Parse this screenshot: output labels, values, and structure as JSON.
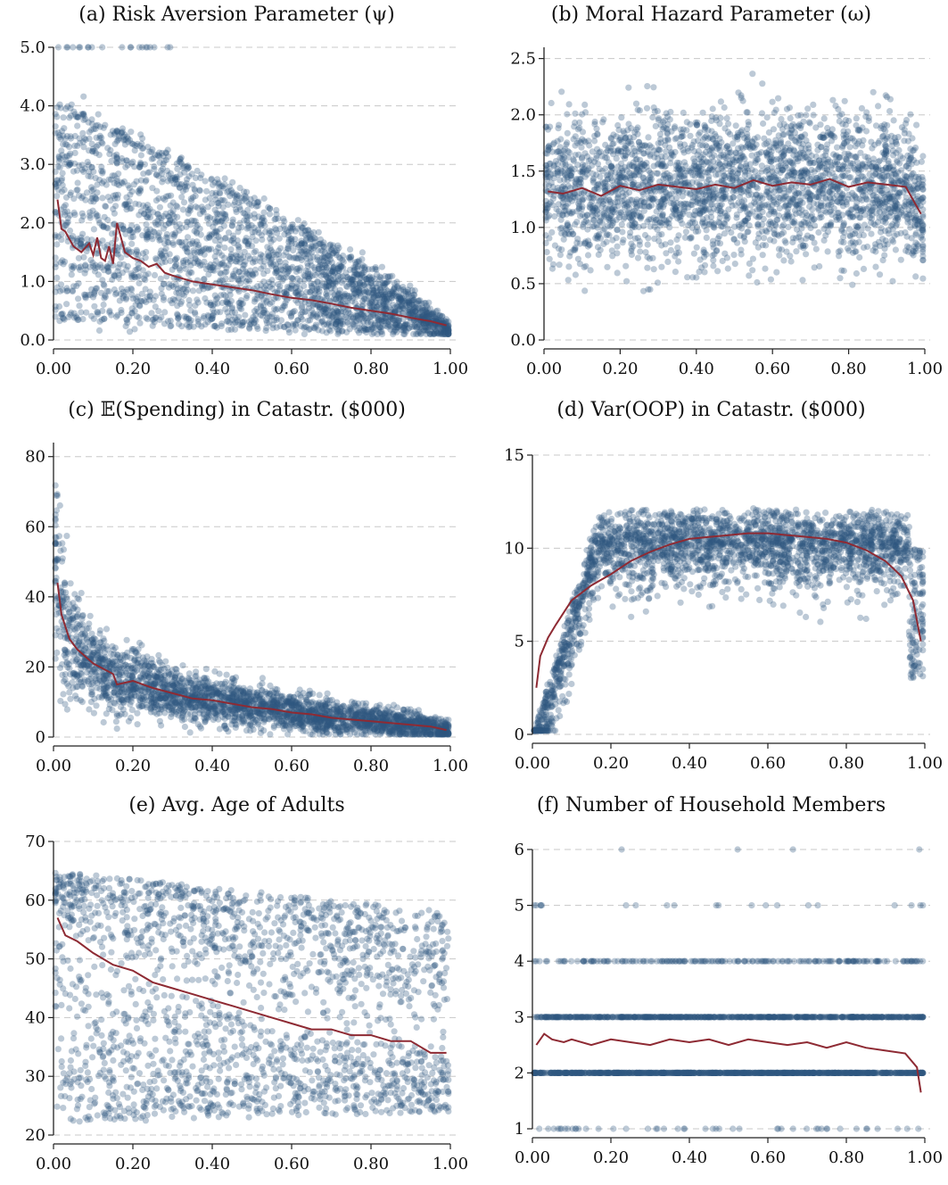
{
  "colors": {
    "scatter": "#2f587f",
    "line": "#8e2a33",
    "grid": "#c8c8c8",
    "axis": "#222222"
  },
  "chart_data": [
    {
      "id": "a",
      "type": "scatter",
      "title": "(a) Risk Aversion Parameter (ψ)",
      "xlim": [
        0,
        1
      ],
      "ylim": [
        0,
        5
      ],
      "xticks": [
        0,
        0.2,
        0.4,
        0.6,
        0.8,
        1.0
      ],
      "xtick_labels": [
        "0.00",
        "0.20",
        "0.40",
        "0.60",
        "0.80",
        "1.00"
      ],
      "yticks": [
        0,
        1,
        2,
        3,
        4,
        5
      ],
      "ytick_labels": [
        "0.0",
        "1.0",
        "2.0",
        "3.0",
        "4.0",
        "5.0"
      ],
      "grid": true,
      "line": {
        "x": [
          0.01,
          0.02,
          0.03,
          0.05,
          0.07,
          0.09,
          0.1,
          0.11,
          0.12,
          0.13,
          0.14,
          0.15,
          0.16,
          0.18,
          0.2,
          0.22,
          0.24,
          0.26,
          0.28,
          0.3,
          0.35,
          0.4,
          0.45,
          0.5,
          0.55,
          0.6,
          0.65,
          0.7,
          0.75,
          0.8,
          0.85,
          0.9,
          0.95,
          0.99
        ],
        "y": [
          2.4,
          1.9,
          1.85,
          1.6,
          1.5,
          1.65,
          1.45,
          1.75,
          1.4,
          1.35,
          1.6,
          1.3,
          2.0,
          1.5,
          1.4,
          1.35,
          1.25,
          1.3,
          1.15,
          1.1,
          1.0,
          0.95,
          0.9,
          0.85,
          0.78,
          0.72,
          0.68,
          0.62,
          0.55,
          0.5,
          0.45,
          0.38,
          0.32,
          0.25
        ]
      },
      "scatter": {
        "n": 2800,
        "x_range": [
          0.0,
          1.0
        ]
      }
    },
    {
      "id": "b",
      "type": "scatter",
      "title": "(b) Moral Hazard Parameter (ω)",
      "xlim": [
        0,
        1
      ],
      "ylim": [
        0,
        2.6
      ],
      "xticks": [
        0,
        0.2,
        0.4,
        0.6,
        0.8,
        1.0
      ],
      "xtick_labels": [
        "0.00",
        "0.20",
        "0.40",
        "0.60",
        "0.80",
        "1.00"
      ],
      "yticks": [
        0,
        0.5,
        1,
        1.5,
        2,
        2.5
      ],
      "ytick_labels": [
        "0.0",
        "0.5",
        "1.0",
        "1.5",
        "2.0",
        "2.5"
      ],
      "grid": true,
      "line": {
        "x": [
          0.01,
          0.05,
          0.1,
          0.15,
          0.2,
          0.25,
          0.3,
          0.35,
          0.4,
          0.45,
          0.5,
          0.55,
          0.6,
          0.65,
          0.7,
          0.75,
          0.8,
          0.85,
          0.9,
          0.95,
          0.99
        ],
        "y": [
          1.32,
          1.3,
          1.35,
          1.28,
          1.37,
          1.33,
          1.38,
          1.36,
          1.34,
          1.38,
          1.35,
          1.42,
          1.37,
          1.4,
          1.38,
          1.43,
          1.36,
          1.4,
          1.38,
          1.36,
          1.12
        ]
      },
      "scatter": {
        "n": 2800,
        "x_range": [
          0.0,
          1.0
        ]
      }
    },
    {
      "id": "c",
      "type": "scatter",
      "title": "(c) 𝔼(Spending) in Catastr. ($000)",
      "xlim": [
        0,
        1
      ],
      "ylim": [
        0,
        84
      ],
      "xticks": [
        0,
        0.2,
        0.4,
        0.6,
        0.8,
        1.0
      ],
      "xtick_labels": [
        "0.00",
        "0.20",
        "0.40",
        "0.60",
        "0.80",
        "1.00"
      ],
      "yticks": [
        0,
        20,
        40,
        60,
        80
      ],
      "ytick_labels": [
        "0",
        "20",
        "40",
        "60",
        "80"
      ],
      "grid": true,
      "line": {
        "x": [
          0.01,
          0.02,
          0.04,
          0.06,
          0.1,
          0.15,
          0.16,
          0.2,
          0.25,
          0.3,
          0.35,
          0.4,
          0.45,
          0.5,
          0.55,
          0.6,
          0.65,
          0.7,
          0.75,
          0.8,
          0.85,
          0.9,
          0.95,
          0.99
        ],
        "y": [
          44,
          35,
          28,
          25,
          21,
          18,
          15,
          16,
          14,
          12.5,
          11,
          10.5,
          9.5,
          8.5,
          8,
          7,
          6.5,
          5.5,
          5,
          4.5,
          4,
          3.5,
          3,
          2
        ]
      },
      "scatter": {
        "n": 2800,
        "x_range": [
          0.0,
          1.0
        ]
      }
    },
    {
      "id": "d",
      "type": "scatter",
      "title": "(d) Var(OOP) in Catastr. ($000)",
      "xlim": [
        0,
        1
      ],
      "ylim": [
        0,
        15
      ],
      "xticks": [
        0,
        0.2,
        0.4,
        0.6,
        0.8,
        1.0
      ],
      "xtick_labels": [
        "0.00",
        "0.20",
        "0.40",
        "0.60",
        "0.80",
        "1.00"
      ],
      "yticks": [
        0,
        5,
        10,
        15
      ],
      "ytick_labels": [
        "0",
        "5",
        "10",
        "15"
      ],
      "grid": true,
      "line": {
        "x": [
          0.01,
          0.02,
          0.04,
          0.06,
          0.1,
          0.15,
          0.2,
          0.25,
          0.3,
          0.35,
          0.4,
          0.45,
          0.5,
          0.55,
          0.6,
          0.65,
          0.7,
          0.75,
          0.8,
          0.85,
          0.9,
          0.94,
          0.97,
          0.99
        ],
        "y": [
          2.5,
          4.2,
          5.2,
          5.9,
          7.2,
          8.0,
          8.6,
          9.3,
          9.8,
          10.2,
          10.5,
          10.6,
          10.7,
          10.8,
          10.8,
          10.7,
          10.6,
          10.5,
          10.3,
          9.9,
          9.3,
          8.5,
          7.2,
          5.0
        ]
      },
      "scatter": {
        "n": 2800,
        "x_range": [
          0.0,
          1.0
        ]
      }
    },
    {
      "id": "e",
      "type": "scatter",
      "title": "(e) Avg. Age of Adults",
      "xlim": [
        0,
        1
      ],
      "ylim": [
        20,
        70
      ],
      "xticks": [
        0,
        0.2,
        0.4,
        0.6,
        0.8,
        1.0
      ],
      "xtick_labels": [
        "0.00",
        "0.20",
        "0.40",
        "0.60",
        "0.80",
        "1.00"
      ],
      "yticks": [
        20,
        30,
        40,
        50,
        60,
        70
      ],
      "ytick_labels": [
        "20",
        "30",
        "40",
        "50",
        "60",
        "70"
      ],
      "grid": true,
      "line": {
        "x": [
          0.01,
          0.03,
          0.06,
          0.1,
          0.15,
          0.2,
          0.25,
          0.3,
          0.35,
          0.4,
          0.45,
          0.5,
          0.55,
          0.6,
          0.65,
          0.7,
          0.75,
          0.8,
          0.85,
          0.9,
          0.95,
          0.99
        ],
        "y": [
          57,
          54,
          53,
          51,
          49,
          48,
          46,
          45,
          44,
          43,
          42,
          41,
          40,
          39,
          38,
          38,
          37,
          37,
          36,
          36,
          34,
          34
        ]
      },
      "scatter": {
        "n": 2000,
        "x_range": [
          0.0,
          1.0
        ]
      }
    },
    {
      "id": "f",
      "type": "scatter",
      "title": "(f) Number of Household Members",
      "xlim": [
        0,
        1
      ],
      "ylim": [
        1,
        6
      ],
      "xticks": [
        0,
        0.2,
        0.4,
        0.6,
        0.8,
        1.0
      ],
      "xtick_labels": [
        "0.00",
        "0.20",
        "0.40",
        "0.60",
        "0.80",
        "1.00"
      ],
      "yticks": [
        1,
        2,
        3,
        4,
        5,
        6
      ],
      "ytick_labels": [
        "1",
        "2",
        "3",
        "4",
        "5",
        "6"
      ],
      "grid": true,
      "line": {
        "x": [
          0.01,
          0.03,
          0.05,
          0.08,
          0.1,
          0.15,
          0.2,
          0.25,
          0.3,
          0.35,
          0.4,
          0.45,
          0.5,
          0.55,
          0.6,
          0.65,
          0.7,
          0.75,
          0.8,
          0.85,
          0.9,
          0.95,
          0.98,
          0.99
        ],
        "y": [
          2.5,
          2.7,
          2.6,
          2.55,
          2.6,
          2.5,
          2.6,
          2.55,
          2.5,
          2.6,
          2.55,
          2.6,
          2.5,
          2.6,
          2.55,
          2.5,
          2.55,
          2.45,
          2.55,
          2.45,
          2.4,
          2.35,
          2.1,
          1.65
        ]
      },
      "scatter": {
        "n": 1800,
        "levels": [
          1,
          2,
          3,
          4,
          5,
          6
        ],
        "x_range": [
          0.0,
          1.0
        ]
      }
    }
  ]
}
